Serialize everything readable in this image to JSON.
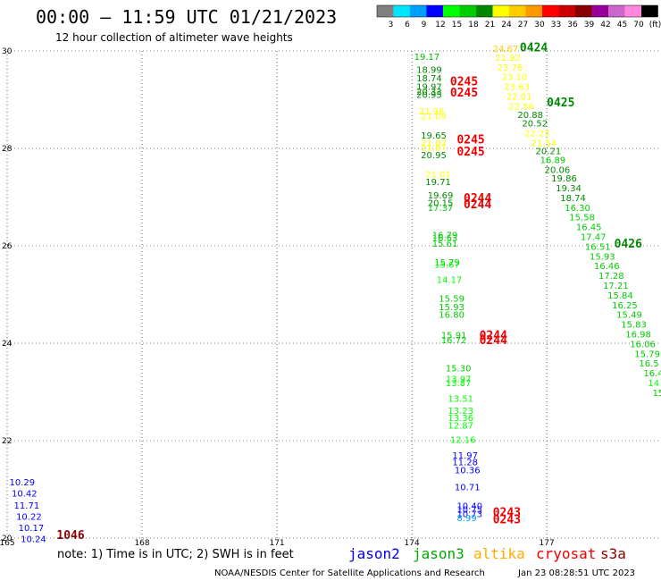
{
  "header": {
    "title": "00:00 — 11:59 UTC 01/21/2023",
    "subtitle": "12 hour collection of altimeter wave heights"
  },
  "colorbar": {
    "colors": [
      "#808080",
      "#00e5ff",
      "#00a0ff",
      "#0000ff",
      "#00ff00",
      "#00cc00",
      "#008800",
      "#ffff00",
      "#ffcc00",
      "#ff9900",
      "#ff0000",
      "#cc0000",
      "#880000",
      "#990099",
      "#cc66cc",
      "#ff88dd",
      "#000000"
    ],
    "labels": [
      "3",
      "6",
      "9",
      "12",
      "15",
      "18",
      "21",
      "24",
      "27",
      "30",
      "33",
      "36",
      "39",
      "42",
      "45",
      "70",
      "(ft)"
    ]
  },
  "chart_data": {
    "type": "scatter",
    "xlim": [
      165,
      179.5
    ],
    "ylim": [
      20,
      30
    ],
    "x_ticks": [
      "165",
      "168",
      "171",
      "174",
      "177"
    ],
    "y_ticks": [
      "30",
      "28",
      "26",
      "24",
      "22",
      "20"
    ],
    "grid": true,
    "points": [
      {
        "x": 174.05,
        "y": 29.82,
        "v": "19.17",
        "c": "#00bb00"
      },
      {
        "x": 174.1,
        "y": 29.55,
        "v": "18.99",
        "c": "#008800"
      },
      {
        "x": 174.1,
        "y": 29.38,
        "v": "18.74",
        "c": "#008800"
      },
      {
        "x": 174.1,
        "y": 29.2,
        "v": "19.97",
        "c": "#008800"
      },
      {
        "x": 174.1,
        "y": 29.1,
        "v": "20.33",
        "c": "#008800"
      },
      {
        "x": 174.1,
        "y": 29.04,
        "v": "20.95",
        "c": "#008800"
      },
      {
        "x": 174.15,
        "y": 28.7,
        "v": "21.96",
        "c": "#ffff00"
      },
      {
        "x": 174.2,
        "y": 28.6,
        "v": "21.09",
        "c": "#ffff00"
      },
      {
        "x": 174.2,
        "y": 28.2,
        "v": "19.65",
        "c": "#008800"
      },
      {
        "x": 174.2,
        "y": 28.05,
        "v": "21.07",
        "c": "#ffff00"
      },
      {
        "x": 174.2,
        "y": 27.95,
        "v": "21.87",
        "c": "#ffff00"
      },
      {
        "x": 174.2,
        "y": 27.8,
        "v": "20.95",
        "c": "#008800"
      },
      {
        "x": 174.3,
        "y": 27.4,
        "v": "21.01",
        "c": "#ffff00"
      },
      {
        "x": 174.3,
        "y": 27.25,
        "v": "19.71",
        "c": "#008800"
      },
      {
        "x": 174.35,
        "y": 26.97,
        "v": "19.69",
        "c": "#008800"
      },
      {
        "x": 174.35,
        "y": 26.82,
        "v": "20.15",
        "c": "#008800"
      },
      {
        "x": 174.35,
        "y": 26.72,
        "v": "17.37",
        "c": "#00cc00"
      },
      {
        "x": 174.45,
        "y": 26.16,
        "v": "16.79",
        "c": "#00cc00"
      },
      {
        "x": 174.45,
        "y": 26.1,
        "v": "16.63",
        "c": "#00cc00"
      },
      {
        "x": 174.45,
        "y": 25.98,
        "v": "15.61",
        "c": "#00cc00"
      },
      {
        "x": 174.5,
        "y": 25.6,
        "v": "15.79",
        "c": "#00cc00"
      },
      {
        "x": 174.5,
        "y": 25.55,
        "v": "15.67",
        "c": "#00ff00"
      },
      {
        "x": 174.55,
        "y": 25.24,
        "v": "14.17",
        "c": "#00ff00"
      },
      {
        "x": 174.6,
        "y": 24.85,
        "v": "15.59",
        "c": "#00cc00"
      },
      {
        "x": 174.6,
        "y": 24.68,
        "v": "15.93",
        "c": "#00cc00"
      },
      {
        "x": 174.6,
        "y": 24.52,
        "v": "16.80",
        "c": "#00cc00"
      },
      {
        "x": 174.65,
        "y": 24.1,
        "v": "15.91",
        "c": "#00cc00"
      },
      {
        "x": 174.65,
        "y": 24.0,
        "v": "16.72",
        "c": "#00cc00"
      },
      {
        "x": 174.75,
        "y": 23.42,
        "v": "15.30",
        "c": "#00cc00"
      },
      {
        "x": 174.75,
        "y": 23.2,
        "v": "13.97",
        "c": "#00ff00"
      },
      {
        "x": 174.75,
        "y": 23.12,
        "v": "13.87",
        "c": "#00ff00"
      },
      {
        "x": 174.8,
        "y": 22.8,
        "v": "13.51",
        "c": "#00ff00"
      },
      {
        "x": 174.8,
        "y": 22.55,
        "v": "13.23",
        "c": "#00ff00"
      },
      {
        "x": 174.8,
        "y": 22.4,
        "v": "13.36",
        "c": "#00ff00"
      },
      {
        "x": 174.8,
        "y": 22.25,
        "v": "12.87",
        "c": "#00ff00"
      },
      {
        "x": 174.85,
        "y": 21.95,
        "v": "12.16",
        "c": "#00ff00"
      },
      {
        "x": 174.9,
        "y": 21.63,
        "v": "11.97",
        "c": "#0000ff"
      },
      {
        "x": 174.9,
        "y": 21.5,
        "v": "11.28",
        "c": "#0000ff"
      },
      {
        "x": 174.95,
        "y": 21.33,
        "v": "10.36",
        "c": "#0000ff"
      },
      {
        "x": 174.95,
        "y": 20.98,
        "v": "10.71",
        "c": "#0000ff"
      },
      {
        "x": 175.0,
        "y": 20.6,
        "v": "10.40",
        "c": "#0000ff"
      },
      {
        "x": 175.0,
        "y": 20.52,
        "v": "10.75",
        "c": "#0000ff"
      },
      {
        "x": 175.0,
        "y": 20.43,
        "v": "10.73",
        "c": "#0000ff"
      },
      {
        "x": 175.0,
        "y": 20.35,
        "v": "8.99",
        "c": "#00a0ff"
      },
      {
        "x": 175.8,
        "y": 29.98,
        "v": "24.67",
        "c": "#ffcc00"
      },
      {
        "x": 175.85,
        "y": 29.8,
        "v": "21.92",
        "c": "#ffff00"
      },
      {
        "x": 175.9,
        "y": 29.6,
        "v": "23.76",
        "c": "#ffff00"
      },
      {
        "x": 176.0,
        "y": 29.4,
        "v": "23.10",
        "c": "#ffff00"
      },
      {
        "x": 176.05,
        "y": 29.2,
        "v": "23.63",
        "c": "#ffff00"
      },
      {
        "x": 176.1,
        "y": 29.0,
        "v": "22.01",
        "c": "#ffff00"
      },
      {
        "x": 176.15,
        "y": 28.8,
        "v": "22.56",
        "c": "#ffff00"
      },
      {
        "x": 176.35,
        "y": 28.62,
        "v": "20.88",
        "c": "#008800"
      },
      {
        "x": 176.45,
        "y": 28.45,
        "v": "20.52",
        "c": "#008800"
      },
      {
        "x": 176.5,
        "y": 28.25,
        "v": "22.23",
        "c": "#ffff00"
      },
      {
        "x": 176.65,
        "y": 28.05,
        "v": "21.54",
        "c": "#ffff00"
      },
      {
        "x": 176.75,
        "y": 27.88,
        "v": "20.21",
        "c": "#008800"
      },
      {
        "x": 176.85,
        "y": 27.7,
        "v": "16.89",
        "c": "#00cc00"
      },
      {
        "x": 176.95,
        "y": 27.5,
        "v": "20.06",
        "c": "#008800"
      },
      {
        "x": 177.1,
        "y": 27.32,
        "v": "19.86",
        "c": "#008800"
      },
      {
        "x": 177.2,
        "y": 27.12,
        "v": "19.34",
        "c": "#008800"
      },
      {
        "x": 177.3,
        "y": 26.92,
        "v": "18.74",
        "c": "#008800"
      },
      {
        "x": 177.4,
        "y": 26.72,
        "v": "16.30",
        "c": "#00cc00"
      },
      {
        "x": 177.5,
        "y": 26.52,
        "v": "15.58",
        "c": "#00cc00"
      },
      {
        "x": 177.65,
        "y": 26.32,
        "v": "16.45",
        "c": "#00cc00"
      },
      {
        "x": 177.75,
        "y": 26.12,
        "v": "17.47",
        "c": "#00cc00"
      },
      {
        "x": 177.85,
        "y": 25.92,
        "v": "16.51",
        "c": "#00cc00"
      },
      {
        "x": 177.95,
        "y": 25.72,
        "v": "15.93",
        "c": "#00cc00"
      },
      {
        "x": 178.05,
        "y": 25.52,
        "v": "16.46",
        "c": "#00cc00"
      },
      {
        "x": 178.15,
        "y": 25.32,
        "v": "17.28",
        "c": "#00cc00"
      },
      {
        "x": 178.25,
        "y": 25.12,
        "v": "17.21",
        "c": "#00cc00"
      },
      {
        "x": 178.35,
        "y": 24.92,
        "v": "15.84",
        "c": "#00cc00"
      },
      {
        "x": 178.45,
        "y": 24.72,
        "v": "16.25",
        "c": "#00cc00"
      },
      {
        "x": 178.55,
        "y": 24.52,
        "v": "15.49",
        "c": "#00cc00"
      },
      {
        "x": 178.65,
        "y": 24.32,
        "v": "15.83",
        "c": "#00cc00"
      },
      {
        "x": 178.75,
        "y": 24.12,
        "v": "16.98",
        "c": "#00cc00"
      },
      {
        "x": 178.85,
        "y": 23.92,
        "v": "16.06",
        "c": "#00cc00"
      },
      {
        "x": 178.95,
        "y": 23.72,
        "v": "15.79",
        "c": "#00cc00"
      },
      {
        "x": 179.05,
        "y": 23.52,
        "v": "16.5",
        "c": "#00cc00"
      },
      {
        "x": 179.15,
        "y": 23.32,
        "v": "16.4",
        "c": "#00cc00"
      },
      {
        "x": 179.25,
        "y": 23.12,
        "v": "14",
        "c": "#00ff00"
      },
      {
        "x": 179.35,
        "y": 22.92,
        "v": "15",
        "c": "#00cc00"
      },
      {
        "x": 165.05,
        "y": 21.08,
        "v": "10.29",
        "c": "#0000ff"
      },
      {
        "x": 165.1,
        "y": 20.85,
        "v": "10.42",
        "c": "#0000ff"
      },
      {
        "x": 165.15,
        "y": 20.61,
        "v": "11.71",
        "c": "#0000ff"
      },
      {
        "x": 165.2,
        "y": 20.38,
        "v": "10.22",
        "c": "#0000ff"
      },
      {
        "x": 165.25,
        "y": 20.15,
        "v": "10.17",
        "c": "#0000ff"
      },
      {
        "x": 165.3,
        "y": 19.92,
        "v": "10.24",
        "c": "#0000ff"
      }
    ],
    "pass_times": [
      {
        "x": 174.85,
        "y": 29.29,
        "v": "0245",
        "c": "#ee0000"
      },
      {
        "x": 174.85,
        "y": 29.06,
        "v": "0245",
        "c": "#ee0000"
      },
      {
        "x": 175.0,
        "y": 28.1,
        "v": "0245",
        "c": "#ee0000"
      },
      {
        "x": 175.0,
        "y": 27.85,
        "v": "0245",
        "c": "#ee0000"
      },
      {
        "x": 175.15,
        "y": 26.9,
        "v": "0244",
        "c": "#ee0000"
      },
      {
        "x": 175.15,
        "y": 26.77,
        "v": "0244",
        "c": "#ee0000"
      },
      {
        "x": 175.5,
        "y": 24.08,
        "v": "0244",
        "c": "#ee0000"
      },
      {
        "x": 175.5,
        "y": 23.98,
        "v": "0244",
        "c": "#ee0000"
      },
      {
        "x": 175.8,
        "y": 20.45,
        "v": "0243",
        "c": "#ee0000"
      },
      {
        "x": 175.8,
        "y": 20.3,
        "v": "0243",
        "c": "#ee0000"
      },
      {
        "x": 176.4,
        "y": 29.99,
        "v": "0424",
        "c": "#008800"
      },
      {
        "x": 177.0,
        "y": 28.86,
        "v": "0425",
        "c": "#008800"
      },
      {
        "x": 178.5,
        "y": 25.96,
        "v": "0426",
        "c": "#008800"
      },
      {
        "x": 166.1,
        "y": 19.98,
        "v": "1046",
        "c": "#880000"
      }
    ]
  },
  "footer": {
    "note": "note: 1) Time is in UTC; 2) SWH is in feet",
    "missions": [
      {
        "name": "jason2",
        "color": "#0000ee"
      },
      {
        "name": "jason3",
        "color": "#00aa00"
      },
      {
        "name": "altika",
        "color": "#ffaa00"
      },
      {
        "name": "cryosat",
        "color": "#ee0000"
      },
      {
        "name": "s3a",
        "color": "#880000"
      }
    ],
    "credit": "NOAA/NESDIS Center for Satellite Applications and Research",
    "timestamp": "Jan 23 08:28:51 UTC 2023"
  }
}
